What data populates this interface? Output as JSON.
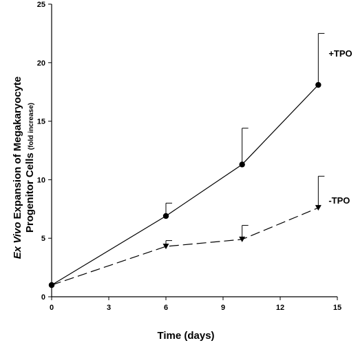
{
  "chart_data": {
    "type": "line",
    "xlabel": "Time (days)",
    "ylabel": {
      "line1_italic": "Ex Vivo",
      "line1_rest": " Expansion of Megakaryocyte",
      "line2": "Progenitor Cells",
      "line2_small": "(fold increase)"
    },
    "xlim": [
      0,
      15
    ],
    "ylim": [
      0,
      25
    ],
    "xticks": [
      0,
      3,
      6,
      9,
      12,
      15
    ],
    "yticks": [
      0,
      5,
      10,
      15,
      20,
      25
    ],
    "grid": false,
    "series": [
      {
        "name": "+TPO",
        "marker": "circle",
        "line_style": "solid",
        "x": [
          0,
          6,
          10,
          14
        ],
        "y": [
          1,
          6.9,
          11.3,
          18.1
        ],
        "error_upper": [
          null,
          8.0,
          14.4,
          22.5
        ]
      },
      {
        "name": "-TPO",
        "marker": "triangle-down",
        "line_style": "dashed",
        "x": [
          0,
          6,
          10,
          14
        ],
        "y": [
          1,
          4.3,
          4.9,
          7.6
        ],
        "error_upper": [
          null,
          4.8,
          6.1,
          10.3
        ]
      }
    ]
  }
}
